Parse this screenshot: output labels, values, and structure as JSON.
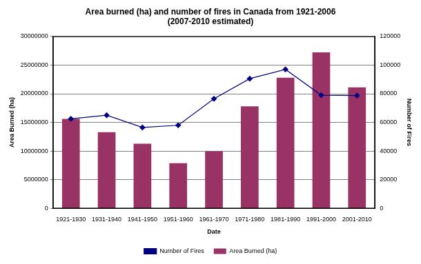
{
  "chart_data": {
    "type": "bar",
    "title": [
      "Area burned (ha) and number of fires in Canada from 1921-2006",
      "(2007-2010 estimated)"
    ],
    "x_label": "Date",
    "y_label": "Area Burned (ha)",
    "y2_label": "Number of Fires",
    "categories": [
      "1921-1930",
      "1931-1940",
      "1941-1950",
      "1951-1960",
      "1961-1970",
      "1971-1980",
      "1981-1990",
      "1991-2000",
      "2001-2010"
    ],
    "series": [
      {
        "name": "Area Burned (ha)",
        "type": "bar",
        "color": "#993366",
        "values": [
          15600000,
          13300000,
          11300000,
          7900000,
          10000000,
          17800000,
          22800000,
          27200000,
          21100000
        ]
      },
      {
        "name": "Number of Fires",
        "type": "line",
        "axis": "y2",
        "color": "#000080",
        "marker": "diamond",
        "values": [
          62500,
          65000,
          56500,
          58000,
          76500,
          90500,
          97000,
          79000,
          78700
        ]
      }
    ],
    "ylim": [
      0,
      30000000
    ],
    "yticks": [
      0,
      5000000,
      10000000,
      15000000,
      20000000,
      25000000,
      30000000
    ],
    "y2lim": [
      0,
      120000
    ],
    "y2ticks": [
      0,
      20000,
      40000,
      60000,
      80000,
      100000,
      120000
    ],
    "grid": true,
    "legend": "bottom"
  }
}
